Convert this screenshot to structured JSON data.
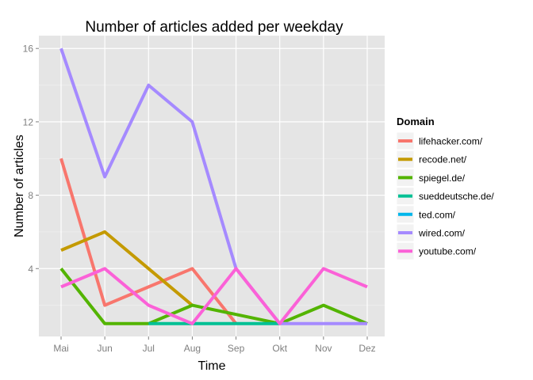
{
  "chart_data": {
    "type": "line",
    "title": "Number of articles added per weekday",
    "xlabel": "Time",
    "ylabel": "Number of articles",
    "categories": [
      "Mai",
      "Jun",
      "Jul",
      "Aug",
      "Sep",
      "Okt",
      "Nov",
      "Dez"
    ],
    "yticks": [
      "4",
      "8",
      "12",
      "16"
    ],
    "ytick_values": [
      4,
      8,
      12,
      16
    ],
    "ylim": [
      0.3,
      16.7
    ],
    "grid": true,
    "panel_background": "#e5e5e5",
    "legend": {
      "title": "Domain",
      "placement": "right"
    },
    "series": [
      {
        "name": "lifehacker.com/",
        "color": "#f8766d",
        "x": [
          "Mai",
          "Jun",
          "Jul",
          "Aug",
          "Sep"
        ],
        "values": [
          10,
          2,
          3,
          4,
          1
        ]
      },
      {
        "name": "recode.net/",
        "color": "#c49a00",
        "x": [
          "Mai",
          "Jun",
          "Jul",
          "Aug"
        ],
        "values": [
          5,
          6,
          4,
          2
        ]
      },
      {
        "name": "spiegel.de/",
        "color": "#53b400",
        "x": [
          "Mai",
          "Jun",
          "Jul",
          "Aug",
          "Sep",
          "Okt",
          "Nov",
          "Dez"
        ],
        "values": [
          4,
          1,
          1,
          2,
          1.5,
          1,
          2,
          1
        ]
      },
      {
        "name": "sueddeutsche.de/",
        "color": "#00c094",
        "x": [
          "Jul",
          "Aug",
          "Sep",
          "Okt"
        ],
        "values": [
          1,
          1,
          1,
          1
        ]
      },
      {
        "name": "ted.com/",
        "color": "#00b6eb",
        "x": [],
        "values": []
      },
      {
        "name": "wired.com/",
        "color": "#a58aff",
        "x": [
          "Mai",
          "Jun",
          "Jul",
          "Aug",
          "Sep",
          "Okt",
          "Nov",
          "Dez"
        ],
        "values": [
          16,
          9,
          14,
          12,
          4,
          1,
          1,
          1
        ]
      },
      {
        "name": "youtube.com/",
        "color": "#fb61d7",
        "x": [
          "Mai",
          "Jun",
          "Jul",
          "Aug",
          "Sep",
          "Okt",
          "Nov",
          "Dez"
        ],
        "values": [
          3,
          4,
          2,
          1,
          4,
          1,
          4,
          3
        ]
      }
    ]
  }
}
